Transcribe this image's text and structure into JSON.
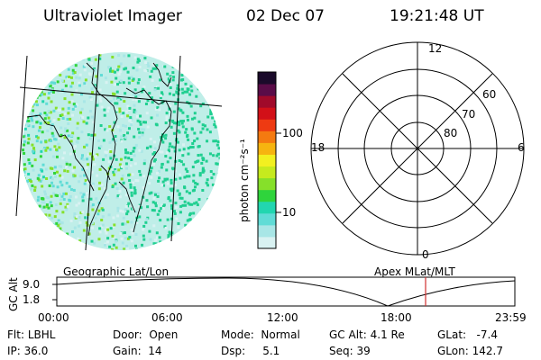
{
  "header": {
    "instrument": "Ultraviolet Imager",
    "date": "02 Dec 07",
    "time": "19:21:48 UT"
  },
  "colorbar": {
    "unit_label": "photon cm⁻²s⁻¹",
    "ticks": [
      "100",
      "10"
    ],
    "scale": "log",
    "colors": [
      "#d9f2f2",
      "#a8e6e6",
      "#60dcd6",
      "#22d6b0",
      "#2fd43c",
      "#86e02a",
      "#c6ea1e",
      "#f2f020",
      "#f6b410",
      "#f47a10",
      "#ee3a12",
      "#d21018",
      "#a00a2a",
      "#5a0c48",
      "#1a0a2a"
    ]
  },
  "polar_plot": {
    "mlt_labels": [
      "12",
      "18",
      "6",
      "0"
    ],
    "mlat_labels": [
      "60",
      "70",
      "80"
    ]
  },
  "timeline": {
    "left_title": "Geographic Lat/Lon",
    "right_title": "Apex MLat/MLT",
    "y_axis_label": "GC Alt",
    "y_ticks": [
      "9.0",
      "1.8"
    ],
    "x_ticks": [
      "00:00",
      "06:00",
      "12:00",
      "18:00",
      "23:59"
    ],
    "current_marker_time": "19:21"
  },
  "info": {
    "filter_label": "Flt:",
    "filter": "LBHL",
    "ip_label": "IP:",
    "ip": "36.0",
    "door_label": "Door:",
    "door": "Open",
    "gain_label": "Gain:",
    "gain": "14",
    "mode_label": "Mode:",
    "mode": "Normal",
    "dsp_label": "Dsp:",
    "dsp": "5.1",
    "gcalt_label": "GC Alt:",
    "gcalt": "4.1 Re",
    "seq_label": "Seq:",
    "seq": "39",
    "glat_label": "GLat:",
    "glat": "-7.4",
    "glon_label": "GLon:",
    "glon": "142.7"
  }
}
